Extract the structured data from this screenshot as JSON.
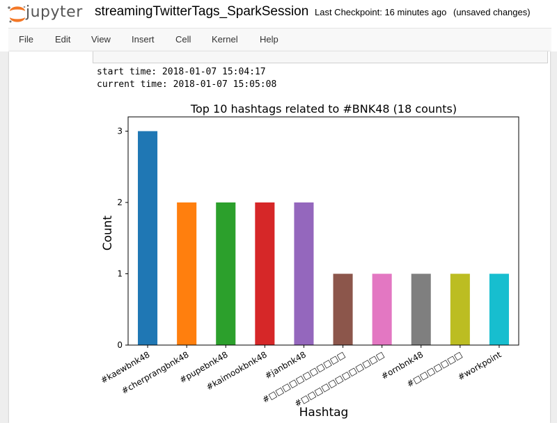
{
  "header": {
    "logo_text": "jupyter",
    "notebook_title": "streamingTwitterTags_SparkSession",
    "checkpoint": "Last Checkpoint: 16 minutes ago",
    "status": "(unsaved changes)"
  },
  "menu": [
    "File",
    "Edit",
    "View",
    "Insert",
    "Cell",
    "Kernel",
    "Help"
  ],
  "output": {
    "start_time": "start time: 2018-01-07 15:04:17",
    "current_time": "current time: 2018-01-07 15:05:08"
  },
  "chart_data": {
    "type": "bar",
    "title": "Top 10 hashtags related to #BNK48 (18 counts)",
    "xlabel": "Hashtag",
    "ylabel": "Count",
    "categories": [
      "#kaewbnk48",
      "#cherprangbnk48",
      "#pupebnk48",
      "#kaimookbnk48",
      "#janbnk48",
      "#□□□□□□□□□□□",
      "#□□□□□□□□□□□□",
      "#ornbnk48",
      "#□□□□□□□",
      "#workpoint"
    ],
    "values": [
      3,
      2,
      2,
      2,
      2,
      1,
      1,
      1,
      1,
      1
    ],
    "colors": [
      "#1f77b4",
      "#ff7f0e",
      "#2ca02c",
      "#d62728",
      "#9467bd",
      "#8c564b",
      "#e377c2",
      "#7f7f7f",
      "#bcbd22",
      "#17becf"
    ],
    "ylim": [
      0,
      3.2
    ],
    "yticks": [
      0,
      1,
      2,
      3
    ],
    "grid": false
  }
}
